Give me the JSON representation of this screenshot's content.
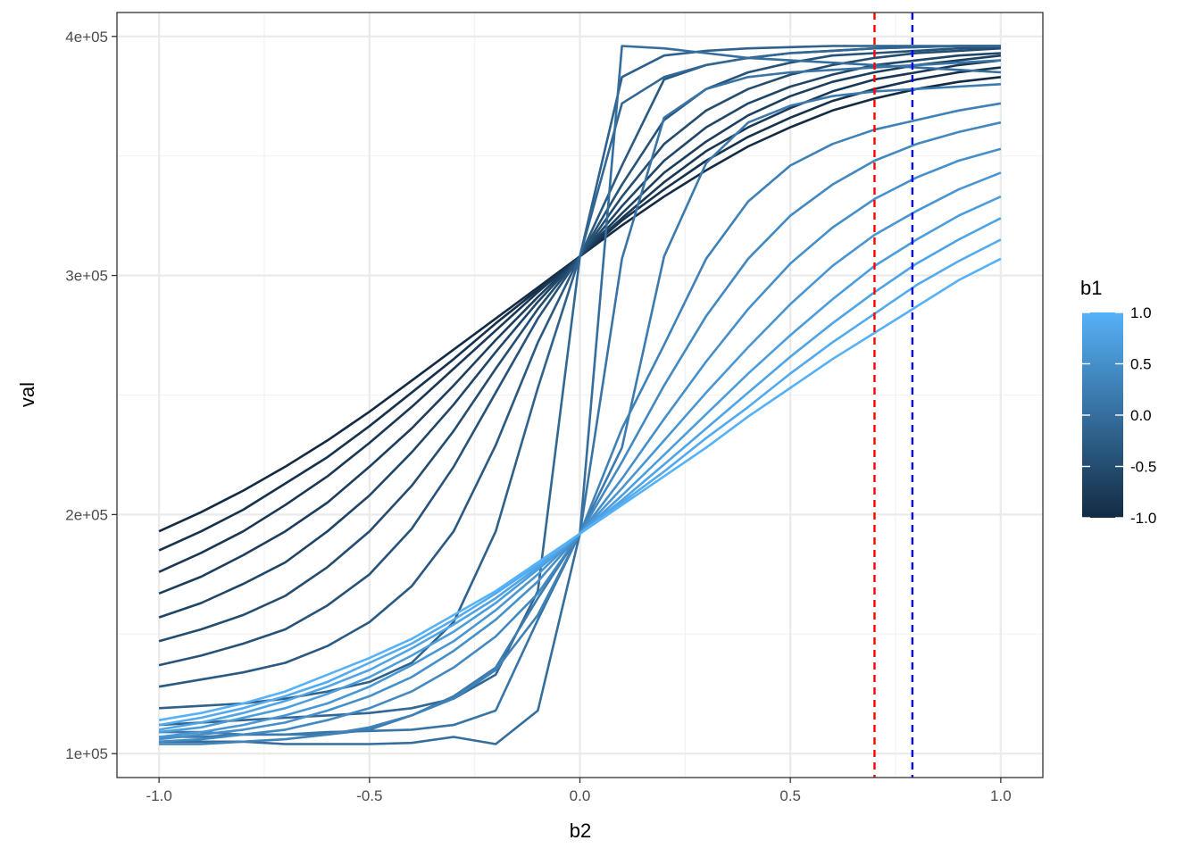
{
  "chart_data": {
    "type": "line",
    "xlabel": "b2",
    "ylabel": "val",
    "xlim": [
      -1.1,
      1.1
    ],
    "ylim": [
      90000,
      410000
    ],
    "x_ticks": [
      -1.0,
      -0.5,
      0.0,
      0.5,
      1.0
    ],
    "x_tick_labels": [
      "-1.0",
      "-0.5",
      "0.0",
      "0.5",
      "1.0"
    ],
    "y_ticks": [
      100000,
      200000,
      300000,
      400000
    ],
    "y_tick_labels": [
      "1e+05",
      "2e+05",
      "3e+05",
      "4e+05"
    ],
    "grid": true,
    "x": [
      -1.0,
      -0.9,
      -0.8,
      -0.7,
      -0.6,
      -0.5,
      -0.4,
      -0.3,
      -0.2,
      -0.1,
      0.0,
      0.1,
      0.2,
      0.3,
      0.4,
      0.5,
      0.6,
      0.7,
      0.8,
      0.9,
      1.0
    ],
    "legend": {
      "title": "b1",
      "position": "right",
      "type": "colorbar",
      "range": [
        -1.0,
        1.0
      ],
      "ticks": [
        1.0,
        0.5,
        0.0,
        -0.5,
        -1.0
      ],
      "tick_labels": [
        "1.0",
        "0.5",
        "0.0",
        "-0.5",
        "-1.0"
      ],
      "color_low": "#132B43",
      "color_high": "#56B1F7"
    },
    "reference_lines": [
      {
        "x": 0.7,
        "color": "#ff0000",
        "style": "dashed"
      },
      {
        "x": 0.79,
        "color": "#0000ff",
        "style": "dashed"
      }
    ],
    "series": [
      {
        "b1": -1.0,
        "values": [
          193000,
          201000,
          210000,
          220000,
          231000,
          243000,
          256000,
          269000,
          282000,
          295000,
          308000,
          321000,
          333000,
          344000,
          354000,
          362000,
          369000,
          374000,
          378000,
          381000,
          383000
        ]
      },
      {
        "b1": -0.9,
        "values": [
          185000,
          193000,
          202000,
          213000,
          224000,
          237000,
          251000,
          265000,
          280000,
          294000,
          308000,
          323000,
          336000,
          348000,
          358000,
          366000,
          373000,
          378000,
          382000,
          385000,
          387000
        ]
      },
      {
        "b1": -0.8,
        "values": [
          176000,
          184000,
          193000,
          204000,
          216000,
          230000,
          245000,
          261000,
          277000,
          293000,
          308000,
          324000,
          339000,
          352000,
          362000,
          370000,
          377000,
          382000,
          385000,
          388000,
          390000
        ]
      },
      {
        "b1": -0.7,
        "values": [
          167000,
          174000,
          183000,
          193000,
          205000,
          220000,
          236000,
          254000,
          273000,
          291000,
          308000,
          326000,
          343000,
          356000,
          367000,
          375000,
          381000,
          385000,
          388000,
          390000,
          392000
        ]
      },
      {
        "b1": -0.6,
        "values": [
          157000,
          163000,
          171000,
          180000,
          193000,
          208000,
          226000,
          246000,
          268000,
          289000,
          308000,
          329000,
          348000,
          362000,
          372000,
          379000,
          384000,
          388000,
          390000,
          392000,
          393000
        ]
      },
      {
        "b1": -0.5,
        "values": [
          147000,
          152000,
          158000,
          166000,
          178000,
          193000,
          212000,
          235000,
          261000,
          286000,
          308000,
          333000,
          355000,
          369000,
          378000,
          384000,
          388000,
          391000,
          393000,
          394000,
          395000
        ]
      },
      {
        "b1": -0.4,
        "values": [
          137000,
          141000,
          146000,
          152000,
          162000,
          175000,
          194000,
          220000,
          251000,
          282000,
          308000,
          338000,
          365000,
          378000,
          385000,
          389000,
          392000,
          393000,
          394000,
          395000,
          395500
        ]
      },
      {
        "b1": -0.3,
        "values": [
          128000,
          131000,
          134000,
          138000,
          145000,
          155000,
          170000,
          193000,
          229000,
          272000,
          308000,
          346000,
          382000,
          388000,
          391000,
          393000,
          394000,
          395000,
          395500,
          396000,
          396000
        ]
      },
      {
        "b1": -0.2,
        "values": [
          119000,
          120000,
          121000,
          123000,
          126000,
          130000,
          138000,
          155000,
          193000,
          253000,
          308000,
          383000,
          392000,
          394000,
          395000,
          395500,
          396000,
          396000,
          396000,
          396000,
          396000
        ]
      },
      {
        "b1": -0.1,
        "values": [
          112000,
          113000,
          114000,
          115000,
          116000,
          117000,
          119000,
          123000,
          133000,
          168000,
          308000,
          372000,
          383000,
          388000,
          391000,
          393000,
          394000,
          395000,
          395500,
          396000,
          396000
        ]
      },
      {
        "b1": 0.0,
        "values": [
          105000,
          105000,
          105000,
          104000,
          104000,
          104000,
          104500,
          107000,
          104000,
          118000,
          192000,
          396000,
          395000,
          393000,
          391000,
          390000,
          389000,
          388000,
          387000,
          386000,
          385000
        ]
      },
      {
        "b1": 0.1,
        "values": [
          107000,
          107000,
          108000,
          108000,
          109000,
          109500,
          110000,
          112000,
          118000,
          156000,
          192000,
          307000,
          366000,
          378000,
          383000,
          385000,
          386000,
          387000,
          388000,
          389000,
          390000
        ]
      },
      {
        "b1": 0.2,
        "values": [
          109000,
          109000,
          108000,
          108000,
          108000,
          110000,
          116000,
          124000,
          136000,
          165000,
          192000,
          228000,
          308000,
          347000,
          364000,
          371000,
          375000,
          377000,
          378000,
          379000,
          380000
        ]
      },
      {
        "b1": 0.3,
        "values": [
          104000,
          104000,
          105000,
          106000,
          108000,
          111000,
          116000,
          123000,
          135000,
          158000,
          192000,
          236000,
          271000,
          307000,
          331000,
          346000,
          355000,
          361000,
          365000,
          369000,
          372000
        ]
      },
      {
        "b1": 0.4,
        "values": [
          105000,
          106000,
          108000,
          110000,
          114000,
          119000,
          126000,
          136000,
          149000,
          167000,
          192000,
          222000,
          254000,
          283000,
          307000,
          325000,
          338000,
          348000,
          355000,
          360000,
          364000
        ]
      },
      {
        "b1": 0.5,
        "values": [
          106000,
          108000,
          110000,
          113000,
          118000,
          124000,
          132000,
          143000,
          156000,
          172000,
          192000,
          215000,
          240000,
          264000,
          286000,
          305000,
          320000,
          332000,
          341000,
          348000,
          353000
        ]
      },
      {
        "b1": 0.6,
        "values": [
          107000,
          109000,
          112000,
          116000,
          121000,
          128000,
          137000,
          147000,
          160000,
          175000,
          192000,
          211000,
          231000,
          251000,
          270000,
          288000,
          304000,
          317000,
          327000,
          336000,
          343000
        ]
      },
      {
        "b1": 0.7,
        "values": [
          109000,
          111000,
          115000,
          119000,
          125000,
          132000,
          141000,
          151000,
          163000,
          177000,
          192000,
          208000,
          225000,
          242000,
          259000,
          275000,
          290000,
          304000,
          315000,
          325000,
          333000
        ]
      },
      {
        "b1": 0.8,
        "values": [
          110000,
          113000,
          117000,
          122000,
          128000,
          135000,
          144000,
          154000,
          165000,
          178000,
          192000,
          206000,
          221000,
          236000,
          251000,
          266000,
          280000,
          293000,
          305000,
          315000,
          324000
        ]
      },
      {
        "b1": 0.9,
        "values": [
          112000,
          115000,
          119000,
          124000,
          130000,
          138000,
          146000,
          156000,
          167000,
          179000,
          192000,
          205000,
          218000,
          232000,
          245000,
          259000,
          272000,
          284000,
          296000,
          306000,
          315000
        ]
      },
      {
        "b1": 1.0,
        "values": [
          114000,
          117000,
          121000,
          126000,
          133000,
          140000,
          148000,
          158000,
          168000,
          180000,
          192000,
          204000,
          216000,
          228000,
          241000,
          253000,
          265000,
          276000,
          287000,
          298000,
          307000
        ]
      }
    ]
  }
}
